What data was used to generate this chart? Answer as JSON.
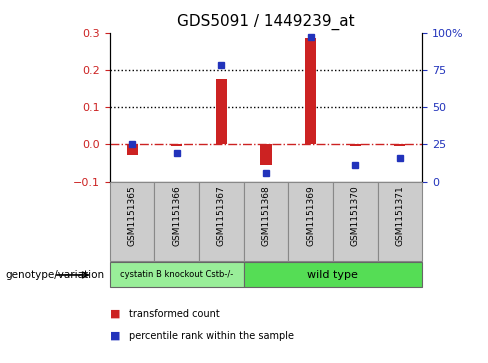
{
  "title": "GDS5091 / 1449239_at",
  "categories": [
    "GSM1151365",
    "GSM1151366",
    "GSM1151367",
    "GSM1151368",
    "GSM1151369",
    "GSM1151370",
    "GSM1151371"
  ],
  "bar_values": [
    -0.03,
    -0.005,
    0.175,
    -0.055,
    0.285,
    -0.005,
    -0.005
  ],
  "dot_values_pct": [
    25,
    19,
    78,
    6,
    97,
    11,
    16
  ],
  "ylim_left": [
    -0.1,
    0.3
  ],
  "ylim_right": [
    0,
    100
  ],
  "yticks_left": [
    -0.1,
    0.0,
    0.1,
    0.2,
    0.3
  ],
  "yticks_right": [
    0,
    25,
    50,
    75,
    100
  ],
  "ytick_labels_right": [
    "0",
    "25",
    "50",
    "75",
    "100%"
  ],
  "bar_color": "#cc2222",
  "dot_color": "#2233bb",
  "dashed_line_color": "#cc2222",
  "grid_color": "#000000",
  "bg_plot": "#ffffff",
  "group1_label": "cystatin B knockout Cstb-/-",
  "group2_label": "wild type",
  "group1_color": "#99ee99",
  "group2_color": "#55dd55",
  "group1_count": 3,
  "group2_count": 4,
  "sample_box_color": "#cccccc",
  "sample_box_edge": "#888888",
  "xlabel_genotype": "genotype/variation",
  "legend_bar": "transformed count",
  "legend_dot": "percentile rank within the sample",
  "tick_label_color_left": "#cc2222",
  "tick_label_color_right": "#2233bb",
  "figsize": [
    4.88,
    3.63
  ],
  "dpi": 100
}
